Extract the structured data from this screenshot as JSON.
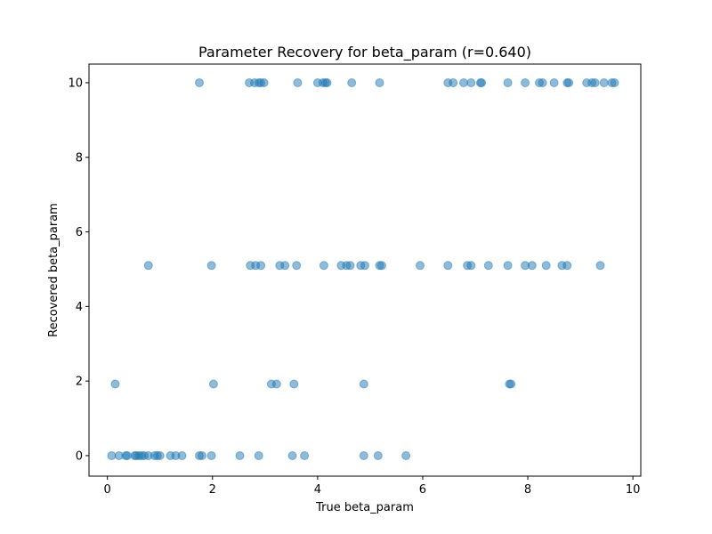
{
  "chart_data": {
    "type": "scatter",
    "title": "Parameter Recovery for beta_param (r=0.640)",
    "xlabel": "True beta_param",
    "ylabel": "Recovered beta_param",
    "xlim": [
      -0.35,
      10.15
    ],
    "ylim": [
      -0.55,
      10.5
    ],
    "xticks": [
      0,
      2,
      4,
      6,
      8,
      10
    ],
    "yticks": [
      0,
      2,
      4,
      6,
      8,
      10
    ],
    "xtick_labels": [
      "0",
      "2",
      "4",
      "6",
      "8",
      "10"
    ],
    "ytick_labels": [
      "0",
      "2",
      "4",
      "6",
      "8",
      "10"
    ],
    "grid": false,
    "marker_color": "#1f77b4",
    "marker_alpha": 0.5,
    "points": [
      {
        "x": 1.75,
        "y": 10
      },
      {
        "x": 2.7,
        "y": 10
      },
      {
        "x": 2.8,
        "y": 10
      },
      {
        "x": 2.88,
        "y": 10
      },
      {
        "x": 2.92,
        "y": 10
      },
      {
        "x": 2.98,
        "y": 10
      },
      {
        "x": 3.62,
        "y": 10
      },
      {
        "x": 4.0,
        "y": 10
      },
      {
        "x": 4.1,
        "y": 10
      },
      {
        "x": 4.15,
        "y": 10
      },
      {
        "x": 4.18,
        "y": 10
      },
      {
        "x": 4.65,
        "y": 10
      },
      {
        "x": 5.18,
        "y": 10
      },
      {
        "x": 6.48,
        "y": 10
      },
      {
        "x": 6.58,
        "y": 10
      },
      {
        "x": 6.78,
        "y": 10
      },
      {
        "x": 6.92,
        "y": 10
      },
      {
        "x": 7.1,
        "y": 10
      },
      {
        "x": 7.12,
        "y": 10
      },
      {
        "x": 7.62,
        "y": 10
      },
      {
        "x": 7.95,
        "y": 10
      },
      {
        "x": 8.22,
        "y": 10
      },
      {
        "x": 8.28,
        "y": 10
      },
      {
        "x": 8.5,
        "y": 10
      },
      {
        "x": 8.75,
        "y": 10
      },
      {
        "x": 8.78,
        "y": 10
      },
      {
        "x": 9.12,
        "y": 10
      },
      {
        "x": 9.22,
        "y": 10
      },
      {
        "x": 9.28,
        "y": 10
      },
      {
        "x": 9.45,
        "y": 10
      },
      {
        "x": 9.6,
        "y": 10
      },
      {
        "x": 9.65,
        "y": 10
      },
      {
        "x": 0.78,
        "y": 5.1
      },
      {
        "x": 1.98,
        "y": 5.1
      },
      {
        "x": 2.72,
        "y": 5.1
      },
      {
        "x": 2.82,
        "y": 5.1
      },
      {
        "x": 2.92,
        "y": 5.1
      },
      {
        "x": 3.28,
        "y": 5.1
      },
      {
        "x": 3.38,
        "y": 5.1
      },
      {
        "x": 3.6,
        "y": 5.1
      },
      {
        "x": 4.12,
        "y": 5.1
      },
      {
        "x": 4.45,
        "y": 5.1
      },
      {
        "x": 4.55,
        "y": 5.1
      },
      {
        "x": 4.62,
        "y": 5.1
      },
      {
        "x": 4.82,
        "y": 5.1
      },
      {
        "x": 4.9,
        "y": 5.1
      },
      {
        "x": 5.18,
        "y": 5.1
      },
      {
        "x": 5.22,
        "y": 5.1
      },
      {
        "x": 5.95,
        "y": 5.1
      },
      {
        "x": 6.48,
        "y": 5.1
      },
      {
        "x": 6.85,
        "y": 5.1
      },
      {
        "x": 6.92,
        "y": 5.1
      },
      {
        "x": 7.25,
        "y": 5.1
      },
      {
        "x": 7.62,
        "y": 5.1
      },
      {
        "x": 7.95,
        "y": 5.1
      },
      {
        "x": 8.08,
        "y": 5.1
      },
      {
        "x": 8.35,
        "y": 5.1
      },
      {
        "x": 8.65,
        "y": 5.1
      },
      {
        "x": 8.75,
        "y": 5.1
      },
      {
        "x": 9.38,
        "y": 5.1
      },
      {
        "x": 0.15,
        "y": 1.92
      },
      {
        "x": 2.02,
        "y": 1.92
      },
      {
        "x": 3.12,
        "y": 1.92
      },
      {
        "x": 3.22,
        "y": 1.92
      },
      {
        "x": 3.55,
        "y": 1.92
      },
      {
        "x": 4.88,
        "y": 1.92
      },
      {
        "x": 7.65,
        "y": 1.92
      },
      {
        "x": 7.68,
        "y": 1.92
      },
      {
        "x": 0.08,
        "y": 0
      },
      {
        "x": 0.22,
        "y": 0
      },
      {
        "x": 0.35,
        "y": 0
      },
      {
        "x": 0.38,
        "y": 0
      },
      {
        "x": 0.52,
        "y": 0
      },
      {
        "x": 0.55,
        "y": 0
      },
      {
        "x": 0.6,
        "y": 0
      },
      {
        "x": 0.65,
        "y": 0
      },
      {
        "x": 0.7,
        "y": 0
      },
      {
        "x": 0.78,
        "y": 0
      },
      {
        "x": 0.9,
        "y": 0
      },
      {
        "x": 0.95,
        "y": 0
      },
      {
        "x": 1.0,
        "y": 0
      },
      {
        "x": 1.2,
        "y": 0
      },
      {
        "x": 1.3,
        "y": 0
      },
      {
        "x": 1.42,
        "y": 0
      },
      {
        "x": 1.75,
        "y": 0
      },
      {
        "x": 1.8,
        "y": 0
      },
      {
        "x": 1.98,
        "y": 0
      },
      {
        "x": 2.52,
        "y": 0
      },
      {
        "x": 2.88,
        "y": 0
      },
      {
        "x": 3.52,
        "y": 0
      },
      {
        "x": 3.75,
        "y": 0
      },
      {
        "x": 4.88,
        "y": 0
      },
      {
        "x": 5.15,
        "y": 0
      },
      {
        "x": 5.68,
        "y": 0
      }
    ]
  }
}
